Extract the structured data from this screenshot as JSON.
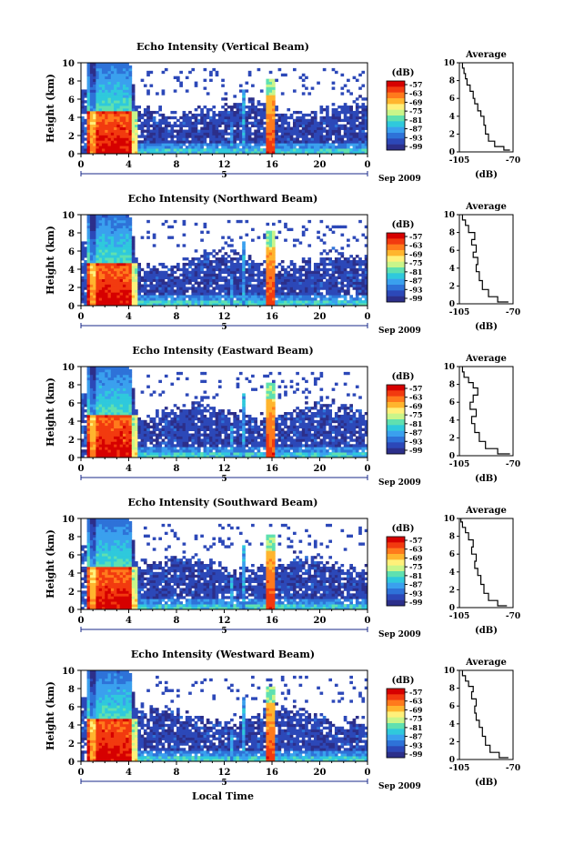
{
  "colorbar": {
    "unit_label": "(dB)",
    "tick_labels": [
      "-57",
      "-63",
      "-69",
      "-75",
      "-81",
      "-87",
      "-93",
      "-99"
    ],
    "colors": [
      "#d60000",
      "#f23a0f",
      "#ff7a1c",
      "#ffb52e",
      "#fff07a",
      "#c9f58a",
      "#5fe0b0",
      "#2fc9dc",
      "#3aa0ee",
      "#2e72d8",
      "#2c48b8",
      "#2c2f8a"
    ]
  },
  "panels": [
    {
      "title": "Echo Intensity (Vertical Beam)",
      "avg_title": "Average"
    },
    {
      "title": "Echo Intensity (Northward Beam)",
      "avg_title": "Average"
    },
    {
      "title": "Echo Intensity (Eastward Beam)",
      "avg_title": "Average"
    },
    {
      "title": "Echo Intensity (Southward Beam)",
      "avg_title": "Average"
    },
    {
      "title": "Echo Intensity (Westward Beam)",
      "avg_title": "Average"
    }
  ],
  "axes": {
    "ylabel": "Height (km)",
    "ytick_labels": [
      "0",
      "2",
      "4",
      "6",
      "8",
      "10"
    ],
    "xtick_labels": [
      "0",
      "4",
      "8",
      "12",
      "16",
      "20",
      "0"
    ],
    "date_tick_label": "5",
    "date_label": "Sep 2009",
    "avg_xtick_labels": [
      "-105",
      "-70"
    ],
    "avg_xlabel": "(dB)",
    "bottom_xlabel": "Local Time"
  },
  "chart_data": [
    {
      "type": "heatmap",
      "title": "Echo Intensity (Vertical Beam)",
      "xlabel": "",
      "ylabel": "Height (km)",
      "xlim": [
        0,
        24
      ],
      "ylim": [
        0,
        10
      ],
      "colorbar_range_dB": [
        -99,
        -57
      ]
    },
    {
      "type": "line",
      "title": "Average",
      "xlabel": "(dB)",
      "ylabel": "",
      "xlim": [
        -105,
        -70
      ],
      "ylim": [
        0,
        10
      ],
      "x": [
        -72,
        -76,
        -82,
        -86,
        -88,
        -89,
        -91,
        -93,
        -95,
        -96,
        -98,
        -100,
        -101,
        -102,
        -103
      ],
      "y": [
        0.2,
        0.6,
        1.2,
        2.0,
        3.0,
        4.0,
        4.6,
        5.4,
        6.0,
        6.8,
        7.5,
        8.2,
        8.8,
        9.4,
        10
      ]
    },
    {
      "type": "heatmap",
      "title": "Echo Intensity (Northward Beam)",
      "xlabel": "",
      "ylabel": "Height (km)",
      "xlim": [
        0,
        24
      ],
      "ylim": [
        0,
        10
      ],
      "colorbar_range_dB": [
        -99,
        -57
      ]
    },
    {
      "type": "line",
      "title": "Average",
      "xlabel": "(dB)",
      "ylabel": "",
      "xlim": [
        -105,
        -70
      ],
      "ylim": [
        0,
        10
      ],
      "x": [
        -73,
        -80,
        -86,
        -90,
        -92,
        -94,
        -93,
        -96,
        -94,
        -97,
        -95,
        -99,
        -101,
        -103
      ],
      "y": [
        0.2,
        0.8,
        1.6,
        2.6,
        3.6,
        4.4,
        5.2,
        5.8,
        6.6,
        7.2,
        8.0,
        8.8,
        9.4,
        10
      ]
    },
    {
      "type": "heatmap",
      "title": "Echo Intensity (Eastward Beam)",
      "xlabel": "",
      "ylabel": "Height (km)",
      "xlim": [
        0,
        24
      ],
      "ylim": [
        0,
        10
      ],
      "colorbar_range_dB": [
        -99,
        -57
      ]
    },
    {
      "type": "line",
      "title": "Average",
      "xlabel": "(dB)",
      "ylabel": "",
      "xlim": [
        -105,
        -70
      ],
      "ylim": [
        0,
        10
      ],
      "x": [
        -72,
        -80,
        -88,
        -92,
        -95,
        -97,
        -94,
        -98,
        -96,
        -93,
        -96,
        -99,
        -102,
        -103
      ],
      "y": [
        0.2,
        0.8,
        1.6,
        2.6,
        3.6,
        4.4,
        5.2,
        6.0,
        6.8,
        7.6,
        8.2,
        8.8,
        9.4,
        10
      ]
    },
    {
      "type": "heatmap",
      "title": "Echo Intensity (Southward Beam)",
      "xlabel": "",
      "ylabel": "Height (km)",
      "xlim": [
        0,
        24
      ],
      "ylim": [
        0,
        10
      ],
      "colorbar_range_dB": [
        -99,
        -57
      ]
    },
    {
      "type": "line",
      "title": "Average",
      "xlabel": "(dB)",
      "ylabel": "",
      "xlim": [
        -105,
        -70
      ],
      "ylim": [
        0,
        10
      ],
      "x": [
        -74,
        -80,
        -86,
        -89,
        -91,
        -93,
        -95,
        -94,
        -97,
        -96,
        -99,
        -101,
        -103,
        -104
      ],
      "y": [
        0.2,
        0.8,
        1.6,
        2.6,
        3.6,
        4.4,
        5.2,
        6.0,
        6.8,
        7.6,
        8.4,
        9.0,
        9.6,
        10
      ]
    },
    {
      "type": "heatmap",
      "title": "Echo Intensity (Westward Beam)",
      "xlabel": "",
      "ylabel": "Height (km)",
      "xlim": [
        0,
        24
      ],
      "ylim": [
        0,
        10
      ],
      "colorbar_range_dB": [
        -99,
        -57
      ]
    },
    {
      "type": "line",
      "title": "Average",
      "xlabel": "(dB)",
      "ylabel": "",
      "xlim": [
        -105,
        -70
      ],
      "ylim": [
        0,
        10
      ],
      "x": [
        -73,
        -79,
        -85,
        -88,
        -90,
        -92,
        -94,
        -95,
        -94,
        -97,
        -96,
        -99,
        -101,
        -103
      ],
      "y": [
        0.2,
        0.8,
        1.6,
        2.6,
        3.6,
        4.4,
        5.2,
        6.0,
        6.8,
        7.6,
        8.2,
        8.8,
        9.4,
        10
      ]
    }
  ]
}
